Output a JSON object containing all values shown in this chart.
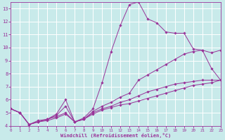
{
  "background_color": "#c8eaea",
  "grid_color": "#ffffff",
  "line_color": "#993399",
  "xlabel": "Windchill (Refroidissement éolien,°C)",
  "xlim": [
    0,
    23
  ],
  "ylim": [
    4,
    13.5
  ],
  "xticks": [
    0,
    1,
    2,
    3,
    4,
    5,
    6,
    7,
    8,
    9,
    10,
    11,
    12,
    13,
    14,
    15,
    16,
    17,
    18,
    19,
    20,
    21,
    22,
    23
  ],
  "yticks": [
    4,
    5,
    6,
    7,
    8,
    9,
    10,
    11,
    12,
    13
  ],
  "lines": [
    {
      "x": [
        0,
        1,
        2,
        3,
        4,
        5,
        6,
        7,
        8,
        9,
        10,
        11,
        12,
        13,
        14,
        15,
        16,
        17,
        18,
        19,
        20,
        21,
        22,
        23
      ],
      "y": [
        5.3,
        5.0,
        4.1,
        4.4,
        4.5,
        4.9,
        6.0,
        4.3,
        4.6,
        5.3,
        7.3,
        9.7,
        11.7,
        13.3,
        13.5,
        12.2,
        11.9,
        11.2,
        11.1,
        11.1,
        9.9,
        9.8,
        8.4,
        7.5
      ]
    },
    {
      "x": [
        0,
        1,
        2,
        3,
        4,
        5,
        6,
        7,
        8,
        9,
        10,
        11,
        12,
        13,
        14,
        15,
        16,
        17,
        18,
        19,
        20,
        21,
        22,
        23
      ],
      "y": [
        5.3,
        5.0,
        4.1,
        4.3,
        4.5,
        4.8,
        5.5,
        4.3,
        4.5,
        5.1,
        5.5,
        5.8,
        6.2,
        6.5,
        7.5,
        7.9,
        8.3,
        8.7,
        9.1,
        9.5,
        9.7,
        9.8,
        9.6,
        9.8
      ]
    },
    {
      "x": [
        0,
        1,
        2,
        3,
        4,
        5,
        6,
        7,
        8,
        9,
        10,
        11,
        12,
        13,
        14,
        15,
        16,
        17,
        18,
        19,
        20,
        21,
        22,
        23
      ],
      "y": [
        5.3,
        5.0,
        4.1,
        4.3,
        4.5,
        4.7,
        5.0,
        4.3,
        4.5,
        5.0,
        5.3,
        5.5,
        5.8,
        6.0,
        6.3,
        6.6,
        6.8,
        7.0,
        7.2,
        7.3,
        7.4,
        7.5,
        7.5,
        7.5
      ]
    },
    {
      "x": [
        0,
        1,
        2,
        3,
        4,
        5,
        6,
        7,
        8,
        9,
        10,
        11,
        12,
        13,
        14,
        15,
        16,
        17,
        18,
        19,
        20,
        21,
        22,
        23
      ],
      "y": [
        5.3,
        5.0,
        4.1,
        4.3,
        4.4,
        4.6,
        4.9,
        4.3,
        4.5,
        4.9,
        5.2,
        5.4,
        5.6,
        5.7,
        5.9,
        6.1,
        6.3,
        6.5,
        6.7,
        6.9,
        7.1,
        7.2,
        7.3,
        7.5
      ]
    }
  ]
}
